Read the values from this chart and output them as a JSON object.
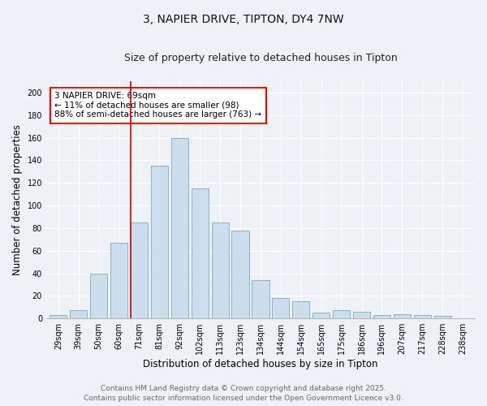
{
  "title_line1": "3, NAPIER DRIVE, TIPTON, DY4 7NW",
  "title_line2": "Size of property relative to detached houses in Tipton",
  "xlabel": "Distribution of detached houses by size in Tipton",
  "ylabel": "Number of detached properties",
  "categories": [
    "29sqm",
    "39sqm",
    "50sqm",
    "60sqm",
    "71sqm",
    "81sqm",
    "92sqm",
    "102sqm",
    "113sqm",
    "123sqm",
    "134sqm",
    "144sqm",
    "154sqm",
    "165sqm",
    "175sqm",
    "186sqm",
    "196sqm",
    "207sqm",
    "217sqm",
    "228sqm",
    "238sqm"
  ],
  "values": [
    3,
    7,
    40,
    67,
    85,
    135,
    160,
    115,
    85,
    78,
    34,
    18,
    15,
    5,
    7,
    6,
    3,
    4,
    3,
    2,
    0
  ],
  "bar_color": "#ccdded",
  "bar_edge_color": "#7aaabb",
  "red_line_index": 4,
  "annotation_title": "3 NAPIER DRIVE: 69sqm",
  "annotation_line1": "← 11% of detached houses are smaller (98)",
  "annotation_line2": "88% of semi-detached houses are larger (763) →",
  "vline_color": "#cc0000",
  "background_color": "#eef2f7",
  "grid_color": "#ffffff",
  "ylim": [
    0,
    210
  ],
  "yticks": [
    0,
    20,
    40,
    60,
    80,
    100,
    120,
    140,
    160,
    180,
    200
  ],
  "footer_line1": "Contains HM Land Registry data © Crown copyright and database right 2025.",
  "footer_line2": "Contains public sector information licensed under the Open Government Licence v3.0.",
  "title_fontsize": 10,
  "subtitle_fontsize": 9,
  "axis_label_fontsize": 8.5,
  "tick_fontsize": 7,
  "footer_fontsize": 6.5,
  "annotation_fontsize": 7.5
}
